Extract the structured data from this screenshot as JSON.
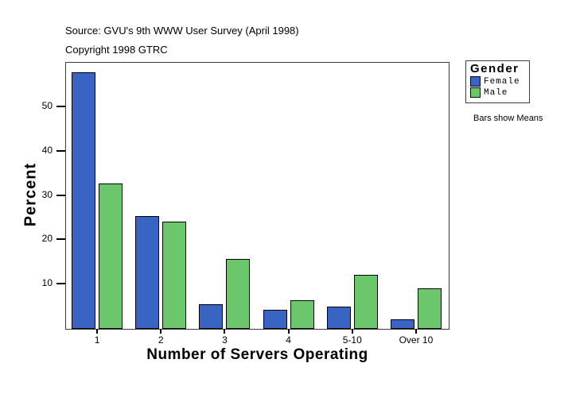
{
  "header": {
    "source": "Source: GVU's 9th WWW User Survey (April 1998)",
    "copyright": "Copyright 1998 GTRC"
  },
  "chart_data": {
    "type": "bar",
    "categories": [
      "1",
      "2",
      "3",
      "4",
      "5-10",
      "Over 10"
    ],
    "series": [
      {
        "name": "Female",
        "color": "#3A64C4",
        "values": [
          57.8,
          25.4,
          5.6,
          4.3,
          5.0,
          2.2
        ]
      },
      {
        "name": "Male",
        "color": "#6CC76C",
        "values": [
          32.7,
          24.2,
          15.7,
          6.4,
          12.2,
          9.1
        ]
      }
    ],
    "xlabel": "Number of Servers Operating",
    "ylabel": "Percent",
    "yticks": [
      10,
      20,
      30,
      40,
      50
    ],
    "ylim": [
      0,
      60
    ],
    "grid": false,
    "legend": {
      "title": "Gender",
      "position": "right",
      "note": "Bars show Means"
    }
  }
}
